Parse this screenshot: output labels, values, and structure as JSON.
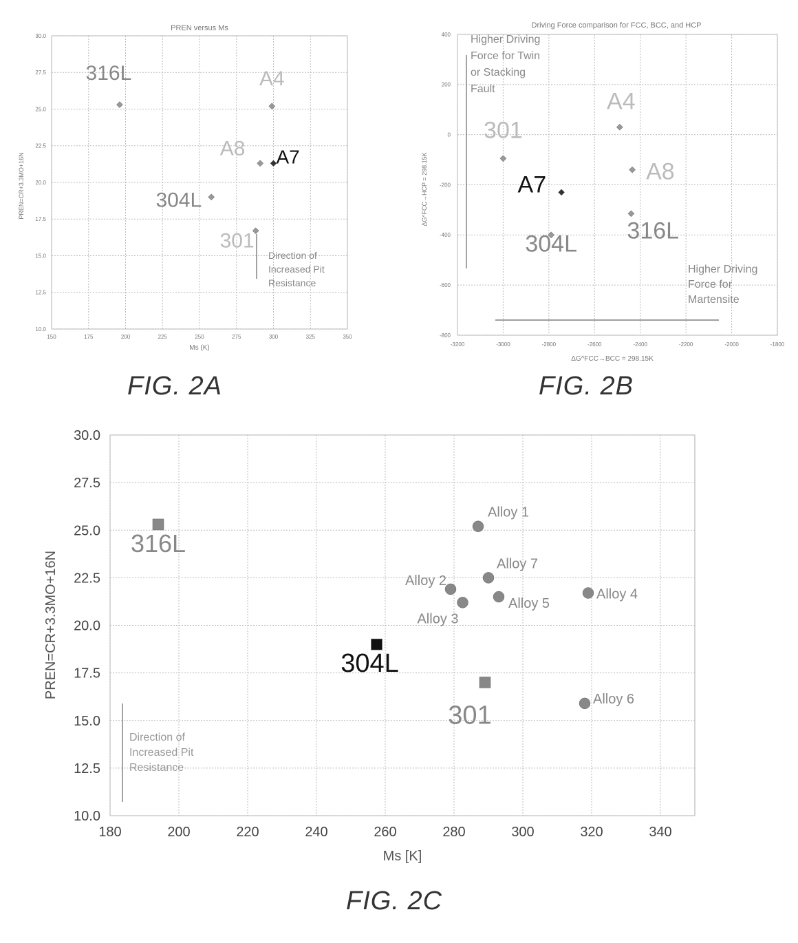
{
  "chart_data": [
    {
      "type": "scatter",
      "title": "PREN versus Ms",
      "xlabel": "Ms (K)",
      "ylabel": "PREN=CR+3.3MO+16N",
      "xlim": [
        150,
        350
      ],
      "ylim": [
        10.0,
        30.0
      ],
      "x_ticks": [
        "150",
        "175",
        "200",
        "225",
        "250",
        "275",
        "300",
        "325",
        "350"
      ],
      "y_ticks": [
        "10.0",
        "12.5",
        "15.0",
        "17.5",
        "20.0",
        "22.5",
        "25.0",
        "27.5",
        "30.0"
      ],
      "grid": true,
      "points": [
        {
          "label": "316L",
          "x": 196,
          "y": 25.3,
          "color": "#888888"
        },
        {
          "label": "A4",
          "x": 299,
          "y": 25.2,
          "color": "#bbbbbb"
        },
        {
          "label": "A8",
          "x": 291,
          "y": 21.3,
          "color": "#bbbbbb"
        },
        {
          "label": "A7",
          "x": 300,
          "y": 21.3,
          "color": "#111111"
        },
        {
          "label": "304L",
          "x": 258,
          "y": 19.0,
          "color": "#888888"
        },
        {
          "label": "301",
          "x": 288,
          "y": 16.7,
          "color": "#bbbbbb"
        }
      ],
      "annotation": [
        "Direction of",
        "Increased Pit",
        "Resistance"
      ]
    },
    {
      "type": "scatter",
      "title": "Driving Force comparison for FCC, BCC, and HCP",
      "xlabel": "ΔG^FCC→BCC = 298.15K",
      "ylabel": "ΔG^FCC→HCP = 298.15K",
      "xlim": [
        -3200,
        -1800
      ],
      "ylim": [
        -800,
        400
      ],
      "x_ticks": [
        "-3200",
        "-3000",
        "-2800",
        "-2600",
        "-2400",
        "-2200",
        "-2000",
        "-1800"
      ],
      "y_ticks": [
        "-800",
        "-600",
        "-400",
        "-200",
        "0",
        "200",
        "400"
      ],
      "grid": true,
      "points": [
        {
          "label": "301",
          "x": -3000,
          "y": -95,
          "color": "#bbbbbb"
        },
        {
          "label": "A4",
          "x": -2490,
          "y": 30,
          "color": "#bbbbbb"
        },
        {
          "label": "A8",
          "x": -2435,
          "y": -140,
          "color": "#bbbbbb"
        },
        {
          "label": "A7",
          "x": -2745,
          "y": -230,
          "color": "#111111"
        },
        {
          "label": "316L",
          "x": -2440,
          "y": -315,
          "color": "#888888"
        },
        {
          "label": "304L",
          "x": -2790,
          "y": -400,
          "color": "#888888"
        }
      ],
      "annotations": [
        [
          "Higher Driving",
          "Force for Twin",
          "or Stacking",
          "Fault"
        ],
        [
          "Higher Driving",
          "Force for",
          "Martensite"
        ]
      ]
    },
    {
      "type": "scatter",
      "xlabel": "Ms [K]",
      "ylabel": "PREN=CR+3.3MO+16N",
      "xlim": [
        180,
        350
      ],
      "ylim": [
        10.0,
        30.0
      ],
      "x_ticks": [
        "180",
        "200",
        "220",
        "240",
        "260",
        "280",
        "300",
        "320",
        "340"
      ],
      "y_ticks": [
        "10.0",
        "12.5",
        "15.0",
        "17.5",
        "20.0",
        "22.5",
        "25.0",
        "27.5",
        "30.0"
      ],
      "grid": true,
      "points": [
        {
          "label": "316L",
          "x": 194,
          "y": 25.3,
          "color": "#888888",
          "shape": "square"
        },
        {
          "label": "304L",
          "x": 257.5,
          "y": 19.0,
          "color": "#111111",
          "shape": "square"
        },
        {
          "label": "301",
          "x": 289,
          "y": 17.0,
          "color": "#888888",
          "shape": "square"
        },
        {
          "label": "Alloy 1",
          "x": 287,
          "y": 25.2,
          "color": "#888888",
          "shape": "circle"
        },
        {
          "label": "Alloy 7",
          "x": 290,
          "y": 22.5,
          "color": "#888888",
          "shape": "circle"
        },
        {
          "label": "Alloy 2",
          "x": 279,
          "y": 21.9,
          "color": "#888888",
          "shape": "circle"
        },
        {
          "label": "Alloy 3",
          "x": 282.5,
          "y": 21.2,
          "color": "#888888",
          "shape": "circle"
        },
        {
          "label": "Alloy 5",
          "x": 293,
          "y": 21.5,
          "color": "#888888",
          "shape": "circle"
        },
        {
          "label": "Alloy 4",
          "x": 319,
          "y": 21.7,
          "color": "#888888",
          "shape": "circle"
        },
        {
          "label": "Alloy 6",
          "x": 318,
          "y": 15.9,
          "color": "#888888",
          "shape": "circle"
        }
      ],
      "annotation": [
        "Direction of",
        "Increased Pit",
        "Resistance"
      ]
    }
  ],
  "captions": [
    "FIG. 2A",
    "FIG. 2B",
    "FIG. 2C"
  ]
}
